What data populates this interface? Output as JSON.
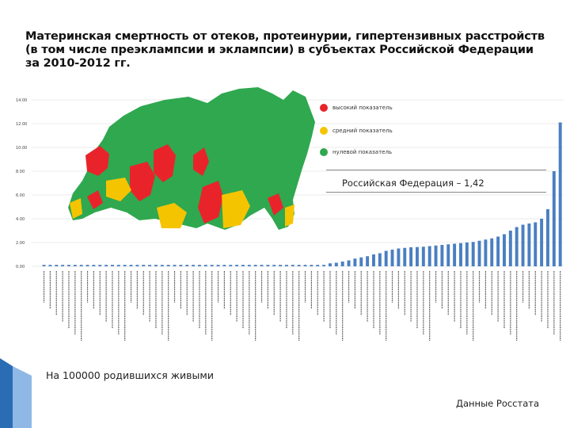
{
  "slide": {
    "title_lines": [
      "Материнская смертность от отеков, протеинурии, гипертензивных расстройств",
      "(в том числе преэклампсии и эклампсии) в субъектах Российской Федерации",
      "за 2010-2012 гг."
    ],
    "footnote": "На 100000 родившихся живыми",
    "source": "Данные Росстата",
    "rf_note": "Российская Федерация – 1,42"
  },
  "legend": [
    {
      "label": "высокий показатель",
      "color": "#e8242a"
    },
    {
      "label": "средний показатель",
      "color": "#f5c400"
    },
    {
      "label": "нулевой показатель",
      "color": "#2fa84f"
    }
  ],
  "colors": {
    "bar": "#4a7fc1",
    "map_green": "#2fa84f",
    "map_red": "#e8242a",
    "map_yellow": "#f5c400",
    "accent": "#2a6db5"
  },
  "chart_data": {
    "type": "bar",
    "ylim": [
      0,
      14
    ],
    "yticks": [
      "0.00",
      "2.00",
      "4.00",
      "6.00",
      "8.00",
      "10.00",
      "12.00",
      "14.00"
    ],
    "n_bars": 84,
    "values": [
      0.12,
      0.12,
      0.12,
      0.12,
      0.12,
      0.12,
      0.12,
      0.12,
      0.12,
      0.12,
      0.12,
      0.12,
      0.12,
      0.12,
      0.12,
      0.12,
      0.12,
      0.12,
      0.12,
      0.12,
      0.12,
      0.12,
      0.12,
      0.12,
      0.12,
      0.12,
      0.12,
      0.12,
      0.12,
      0.12,
      0.12,
      0.12,
      0.12,
      0.12,
      0.12,
      0.12,
      0.12,
      0.12,
      0.12,
      0.12,
      0.12,
      0.12,
      0.12,
      0.12,
      0.12,
      0.12,
      0.25,
      0.3,
      0.4,
      0.5,
      0.65,
      0.75,
      0.85,
      1.0,
      1.1,
      1.3,
      1.4,
      1.5,
      1.55,
      1.6,
      1.62,
      1.65,
      1.7,
      1.75,
      1.8,
      1.85,
      1.9,
      1.95,
      2.0,
      2.05,
      2.15,
      2.25,
      2.35,
      2.5,
      2.7,
      3.0,
      3.3,
      3.5,
      3.6,
      3.7,
      4.0,
      4.8,
      8.0,
      12.1
    ]
  }
}
